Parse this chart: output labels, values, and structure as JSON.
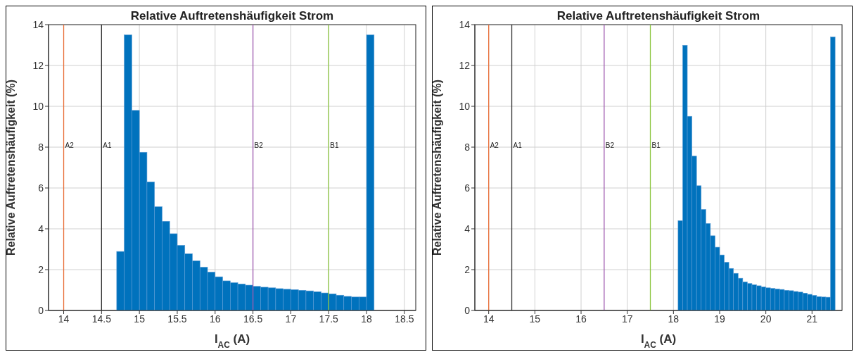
{
  "chart_data": [
    {
      "type": "histogram",
      "title": "Relative Auftretenshäufigkeit Strom",
      "xlabel": "I$_{AC}$ (A)",
      "ylabel": "Relative Auftretenshäufigkeit (%)",
      "color": "#0072bd",
      "bins": [
        14.7,
        14.8,
        14.9,
        15.0,
        15.1,
        15.2,
        15.3,
        15.4,
        15.5,
        15.6,
        15.7,
        15.8,
        15.9,
        16.0,
        16.1,
        16.2,
        16.3,
        16.4,
        16.5,
        16.6,
        16.7,
        16.8,
        16.9,
        17.0,
        17.1,
        17.2,
        17.3,
        17.4,
        17.5,
        17.6,
        17.7,
        17.8,
        17.9,
        18.0,
        18.1
      ],
      "values": [
        2.89,
        13.5,
        9.8,
        7.75,
        6.3,
        5.08,
        4.37,
        3.76,
        3.19,
        2.78,
        2.43,
        2.12,
        1.88,
        1.65,
        1.45,
        1.36,
        1.3,
        1.24,
        1.18,
        1.14,
        1.11,
        1.07,
        1.04,
        1.02,
        0.99,
        0.96,
        0.92,
        0.86,
        0.81,
        0.75,
        0.69,
        0.66,
        0.66,
        13.5
      ],
      "xlim": [
        13.8,
        18.65
      ],
      "xticks": [
        14,
        14.5,
        15,
        15.5,
        16,
        16.5,
        17,
        17.5,
        18,
        18.5
      ],
      "ylim": [
        0,
        14
      ],
      "yticks": [
        0,
        2,
        4,
        6,
        8,
        10,
        12,
        14
      ],
      "grid": true,
      "ref_lines": [
        {
          "axis": "x",
          "value": 14,
          "label": "A2",
          "color": "#e8703a"
        },
        {
          "axis": "x",
          "value": 14.5,
          "label": "A1",
          "color": "#333333"
        },
        {
          "axis": "x",
          "value": 16.5,
          "label": "B2",
          "color": "#a05cb0"
        },
        {
          "axis": "x",
          "value": 17.5,
          "label": "B1",
          "color": "#8cc63f"
        }
      ]
    },
    {
      "type": "histogram",
      "title": "Relative Auftretenshäufigkeit Strom",
      "xlabel": "I$_{AC}$ (A)",
      "ylabel": "Relative Auftretenshäufigkeit (%)",
      "color": "#0072bd",
      "bins": [
        18.1,
        18.2,
        18.3,
        18.4,
        18.5,
        18.6,
        18.7,
        18.8,
        18.9,
        19.0,
        19.1,
        19.2,
        19.3,
        19.4,
        19.5,
        19.6,
        19.7,
        19.8,
        19.9,
        20.0,
        20.1,
        20.2,
        20.3,
        20.4,
        20.5,
        20.6,
        20.7,
        20.8,
        20.9,
        21.0,
        21.1,
        21.2,
        21.3,
        21.4,
        21.5
      ],
      "values": [
        4.4,
        12.99,
        9.51,
        7.56,
        6.11,
        4.95,
        4.26,
        3.66,
        3.1,
        2.72,
        2.36,
        2.06,
        1.82,
        1.58,
        1.4,
        1.32,
        1.26,
        1.21,
        1.15,
        1.11,
        1.08,
        1.05,
        1.03,
        0.99,
        0.97,
        0.93,
        0.9,
        0.85,
        0.79,
        0.74,
        0.68,
        0.66,
        0.65,
        13.4
      ],
      "xlim": [
        13.7,
        21.65
      ],
      "xticks": [
        14,
        15,
        16,
        17,
        18,
        19,
        20,
        21
      ],
      "ylim": [
        0,
        14
      ],
      "yticks": [
        0,
        2,
        4,
        6,
        8,
        10,
        12,
        14
      ],
      "grid": true,
      "ref_lines": [
        {
          "axis": "x",
          "value": 14,
          "label": "A2",
          "color": "#e8703a"
        },
        {
          "axis": "x",
          "value": 14.5,
          "label": "A1",
          "color": "#333333"
        },
        {
          "axis": "x",
          "value": 16.5,
          "label": "B2",
          "color": "#a05cb0"
        },
        {
          "axis": "x",
          "value": 17.5,
          "label": "B1",
          "color": "#8cc63f"
        }
      ]
    }
  ]
}
